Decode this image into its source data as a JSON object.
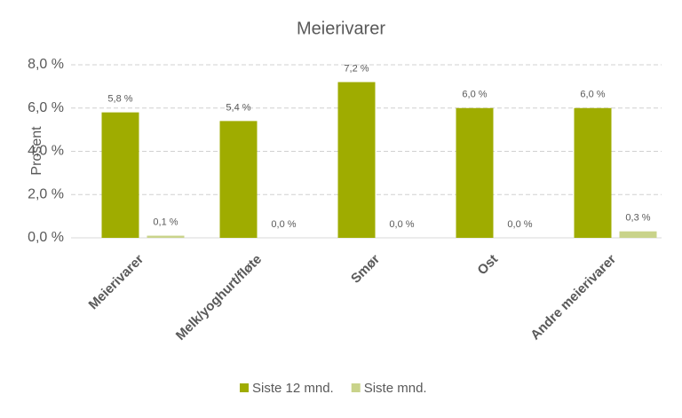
{
  "chart_data": {
    "type": "bar",
    "title": "Meierivarer",
    "y_label": "Prosent",
    "categories": [
      "Meierivarer",
      "Melk/yoghurt/fløte",
      "Smør",
      "Ost",
      "Andre meierivarer"
    ],
    "series": [
      {
        "name": "Siste 12 mnd.",
        "color": "#9fac00",
        "values": [
          5.8,
          5.4,
          7.2,
          6.0,
          6.0
        ],
        "value_labels": [
          "5,8 %",
          "5,4 %",
          "7,2 %",
          "6,0 %",
          "6,0 %"
        ]
      },
      {
        "name": "Siste mnd.",
        "color": "#c9d38a",
        "values": [
          0.1,
          0.0,
          0.0,
          0.0,
          0.3
        ],
        "value_labels": [
          "0,1 %",
          "0,0 %",
          "0,0 %",
          "0,0 %",
          "0,3 %"
        ]
      }
    ],
    "ylim": [
      0,
      8
    ],
    "yticks": [
      {
        "value": 0,
        "label": "0,0 %"
      },
      {
        "value": 2,
        "label": "2,0 %"
      },
      {
        "value": 4,
        "label": "4,0 %"
      },
      {
        "value": 6,
        "label": "6,0 %"
      },
      {
        "value": 8,
        "label": "8,0 %"
      }
    ],
    "grid": true,
    "legend": "bottom"
  }
}
